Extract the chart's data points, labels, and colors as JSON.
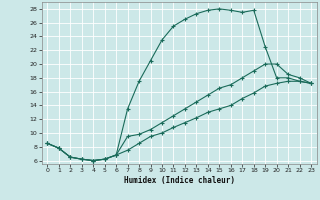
{
  "xlabel": "Humidex (Indice chaleur)",
  "background_color": "#cce8e8",
  "grid_color": "#b0d4d4",
  "line_color": "#1a6b5a",
  "xlim": [
    -0.5,
    23.5
  ],
  "ylim": [
    5.5,
    29
  ],
  "xticks": [
    0,
    1,
    2,
    3,
    4,
    5,
    6,
    7,
    8,
    9,
    10,
    11,
    12,
    13,
    14,
    15,
    16,
    17,
    18,
    19,
    20,
    21,
    22,
    23
  ],
  "yticks": [
    6,
    8,
    10,
    12,
    14,
    16,
    18,
    20,
    22,
    24,
    26,
    28
  ],
  "line1_x": [
    0,
    1,
    2,
    3,
    4,
    5,
    6,
    7,
    8,
    9,
    10,
    11,
    12,
    13,
    14,
    15,
    16,
    17,
    18,
    19,
    20,
    21,
    22,
    23
  ],
  "line1_y": [
    8.5,
    7.8,
    6.5,
    6.2,
    6.0,
    6.2,
    6.8,
    13.5,
    17.5,
    20.5,
    23.5,
    25.5,
    26.5,
    27.3,
    27.8,
    28.0,
    27.8,
    27.5,
    27.8,
    22.5,
    18.0,
    18.0,
    17.5,
    17.2
  ],
  "line2_x": [
    0,
    1,
    2,
    3,
    4,
    5,
    6,
    7,
    8,
    9,
    10,
    11,
    12,
    13,
    14,
    15,
    16,
    17,
    18,
    19,
    20,
    21,
    22,
    23
  ],
  "line2_y": [
    8.5,
    7.8,
    6.5,
    6.2,
    6.0,
    6.2,
    6.8,
    9.5,
    9.8,
    10.5,
    11.5,
    12.5,
    13.5,
    14.5,
    15.5,
    16.5,
    17.0,
    18.0,
    19.0,
    20.0,
    20.0,
    18.5,
    18.0,
    17.2
  ],
  "line3_x": [
    0,
    1,
    2,
    3,
    4,
    5,
    6,
    7,
    8,
    9,
    10,
    11,
    12,
    13,
    14,
    15,
    16,
    17,
    18,
    19,
    20,
    21,
    22,
    23
  ],
  "line3_y": [
    8.5,
    7.8,
    6.5,
    6.2,
    6.0,
    6.2,
    6.8,
    7.5,
    8.5,
    9.5,
    10.0,
    10.8,
    11.5,
    12.2,
    13.0,
    13.5,
    14.0,
    15.0,
    15.8,
    16.8,
    17.2,
    17.5,
    17.5,
    17.2
  ]
}
